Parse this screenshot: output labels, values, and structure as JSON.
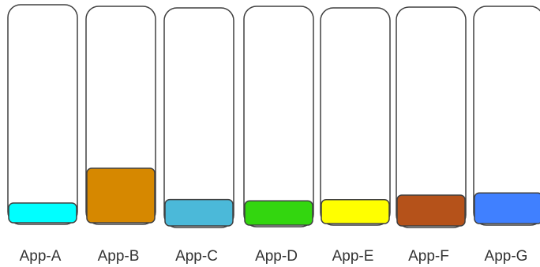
{
  "chart_data": {
    "type": "bar",
    "categories": [
      "App-A",
      "App-B",
      "App-C",
      "App-D",
      "App-E",
      "App-F",
      "App-G"
    ],
    "values": [
      9,
      25,
      12,
      11,
      11,
      14,
      14
    ],
    "ylim": [
      0,
      100
    ],
    "colors": [
      "#00ffff",
      "#d68800",
      "#4bb9d9",
      "#33d60f",
      "#ffff00",
      "#b5521a",
      "#4080ff"
    ],
    "grid": false,
    "legend": "none"
  }
}
